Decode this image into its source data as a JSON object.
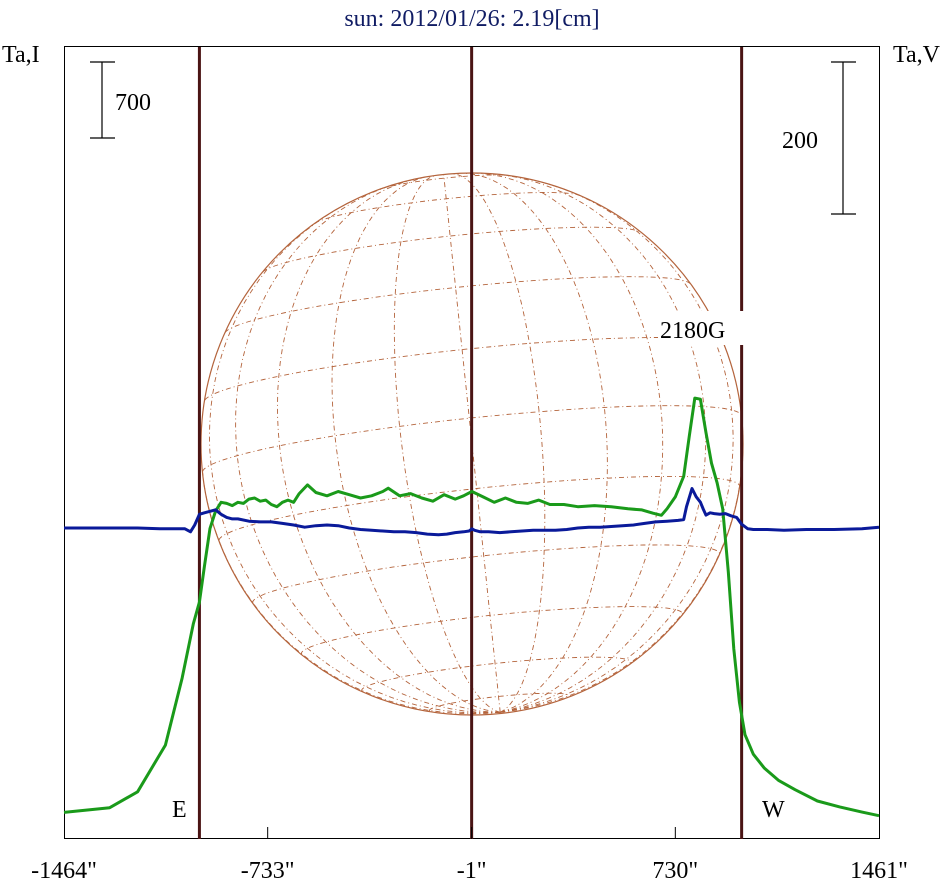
{
  "title": "sun: 2012/01/26: 2.19[cm]",
  "left_axis_label": "Ta,I",
  "right_axis_label": "Ta,V",
  "scale_left_label": "700",
  "scale_right_label": "200",
  "east_label": "E",
  "west_label": "W",
  "region_label": "2180G",
  "colors": {
    "intensity": "#1a9a1a",
    "polarization": "#0a1a9a",
    "marker_lines": "#4a1414",
    "disk": "#b4643c",
    "title": "#101c64",
    "text": "#000000"
  },
  "chart_data": {
    "type": "line",
    "title": "sun: 2012/01/26: 2.19[cm]",
    "xlabel": "",
    "xlim": [
      -1464,
      1461
    ],
    "x_ticks": [
      -1464,
      -733,
      -1,
      730,
      1461
    ],
    "x_tick_labels": [
      "-1464\"",
      "-733\"",
      "-1\"",
      "730\"",
      "1461\""
    ],
    "vertical_markers": [
      -978,
      -1,
      968
    ],
    "scale_bars": {
      "Ta,I": 700,
      "Ta,V": 200
    },
    "grid": false,
    "series": [
      {
        "name": "Ta,I",
        "points": [
          [
            -1464,
            104
          ],
          [
            -1300,
            147
          ],
          [
            -1200,
            294
          ],
          [
            -1100,
            724
          ],
          [
            -1040,
            1340
          ],
          [
            -1000,
            1840
          ],
          [
            -978,
            2040
          ],
          [
            -960,
            2370
          ],
          [
            -940,
            2720
          ],
          [
            -920,
            2880
          ],
          [
            -900,
            2960
          ],
          [
            -880,
            2950
          ],
          [
            -860,
            2930
          ],
          [
            -840,
            2960
          ],
          [
            -820,
            2950
          ],
          [
            -800,
            2990
          ],
          [
            -780,
            3000
          ],
          [
            -760,
            2970
          ],
          [
            -740,
            2980
          ],
          [
            -720,
            2940
          ],
          [
            -700,
            2920
          ],
          [
            -680,
            2960
          ],
          [
            -660,
            2980
          ],
          [
            -640,
            2960
          ],
          [
            -620,
            3040
          ],
          [
            -590,
            3120
          ],
          [
            -560,
            3050
          ],
          [
            -520,
            3020
          ],
          [
            -480,
            3060
          ],
          [
            -440,
            3030
          ],
          [
            -400,
            3000
          ],
          [
            -360,
            3020
          ],
          [
            -320,
            3060
          ],
          [
            -300,
            3090
          ],
          [
            -260,
            3020
          ],
          [
            -220,
            3040
          ],
          [
            -180,
            3000
          ],
          [
            -140,
            2970
          ],
          [
            -100,
            3030
          ],
          [
            -60,
            2990
          ],
          [
            -30,
            3020
          ],
          [
            0,
            3060
          ],
          [
            40,
            3010
          ],
          [
            80,
            2960
          ],
          [
            120,
            3000
          ],
          [
            160,
            2960
          ],
          [
            200,
            2950
          ],
          [
            240,
            2980
          ],
          [
            280,
            2940
          ],
          [
            330,
            2940
          ],
          [
            380,
            2920
          ],
          [
            440,
            2930
          ],
          [
            500,
            2920
          ],
          [
            560,
            2900
          ],
          [
            610,
            2890
          ],
          [
            650,
            2860
          ],
          [
            680,
            2840
          ],
          [
            700,
            2900
          ],
          [
            730,
            3010
          ],
          [
            760,
            3200
          ],
          [
            780,
            3570
          ],
          [
            800,
            3920
          ],
          [
            820,
            3910
          ],
          [
            840,
            3600
          ],
          [
            860,
            3320
          ],
          [
            880,
            3140
          ],
          [
            900,
            2900
          ],
          [
            920,
            2320
          ],
          [
            940,
            1610
          ],
          [
            960,
            1120
          ],
          [
            980,
            820
          ],
          [
            1010,
            640
          ],
          [
            1050,
            510
          ],
          [
            1100,
            400
          ],
          [
            1160,
            313
          ],
          [
            1240,
            209
          ],
          [
            1320,
            155
          ],
          [
            1400,
            107
          ],
          [
            1461,
            74
          ]
        ]
      },
      {
        "name": "Ta,V",
        "points": [
          [
            -1464,
            0
          ],
          [
            -1300,
            0
          ],
          [
            -1200,
            0
          ],
          [
            -1120,
            -1
          ],
          [
            -1030,
            -1
          ],
          [
            -1010,
            -5
          ],
          [
            -995,
            4
          ],
          [
            -978,
            18
          ],
          [
            -960,
            20
          ],
          [
            -940,
            22
          ],
          [
            -920,
            24
          ],
          [
            -900,
            18
          ],
          [
            -880,
            14
          ],
          [
            -860,
            12
          ],
          [
            -840,
            12
          ],
          [
            -800,
            9
          ],
          [
            -760,
            8
          ],
          [
            -720,
            8
          ],
          [
            -680,
            6
          ],
          [
            -640,
            4
          ],
          [
            -600,
            1
          ],
          [
            -560,
            3
          ],
          [
            -520,
            4
          ],
          [
            -480,
            3
          ],
          [
            -440,
            0
          ],
          [
            -400,
            -2
          ],
          [
            -360,
            -3
          ],
          [
            -320,
            -4
          ],
          [
            -280,
            -5
          ],
          [
            -240,
            -5
          ],
          [
            -200,
            -6
          ],
          [
            -160,
            -8
          ],
          [
            -120,
            -9
          ],
          [
            -90,
            -8
          ],
          [
            -60,
            -6
          ],
          [
            -30,
            -5
          ],
          [
            -10,
            -4
          ],
          [
            0,
            -1
          ],
          [
            10,
            -3
          ],
          [
            30,
            -5
          ],
          [
            60,
            -5
          ],
          [
            100,
            -6
          ],
          [
            140,
            -5
          ],
          [
            180,
            -4
          ],
          [
            220,
            -3
          ],
          [
            260,
            -3
          ],
          [
            300,
            -3
          ],
          [
            340,
            -2
          ],
          [
            380,
            0
          ],
          [
            420,
            1
          ],
          [
            460,
            1
          ],
          [
            500,
            2
          ],
          [
            540,
            3
          ],
          [
            580,
            4
          ],
          [
            620,
            6
          ],
          [
            660,
            8
          ],
          [
            700,
            9
          ],
          [
            740,
            10
          ],
          [
            760,
            11
          ],
          [
            770,
            28
          ],
          [
            790,
            52
          ],
          [
            805,
            41
          ],
          [
            820,
            34
          ],
          [
            830,
            25
          ],
          [
            840,
            17
          ],
          [
            855,
            20
          ],
          [
            870,
            19
          ],
          [
            890,
            18
          ],
          [
            910,
            19
          ],
          [
            930,
            16
          ],
          [
            950,
            14
          ],
          [
            968,
            5
          ],
          [
            990,
            -1
          ],
          [
            1010,
            -2
          ],
          [
            1060,
            -2
          ],
          [
            1120,
            -3
          ],
          [
            1200,
            -2
          ],
          [
            1300,
            -2
          ],
          [
            1400,
            -1
          ],
          [
            1461,
            1
          ]
        ]
      }
    ]
  }
}
